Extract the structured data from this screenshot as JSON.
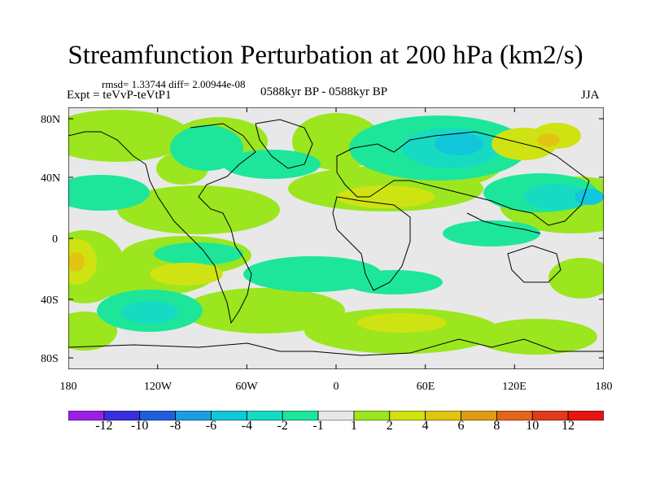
{
  "title": "Streamfunction Perturbation at 200 hPa (km2/s)",
  "stats": "rmsd= 1.33744 diff= 2.00944e-08",
  "expt": "Expt = teVvP-teVtP1",
  "period": "0588kyr BP - 0588kyr BP",
  "season": "JJA",
  "lat_labels": [
    "80N",
    "40N",
    "0",
    "40S",
    "80S"
  ],
  "lon_labels": [
    "180",
    "120W",
    "60W",
    "0",
    "60E",
    "120E",
    "180"
  ],
  "colorbar": {
    "labels": [
      "-12",
      "-10",
      "-8",
      "-6",
      "-4",
      "-2",
      "-1",
      "1",
      "2",
      "4",
      "6",
      "8",
      "10",
      "12"
    ],
    "colors": [
      "#9c1fe6",
      "#3a2fe0",
      "#1e5fdc",
      "#1a9ee0",
      "#12c6dc",
      "#16dbc2",
      "#1de69b",
      "#e8e8e8",
      "#9be61e",
      "#cfe312",
      "#e0c612",
      "#e29a12",
      "#e2661a",
      "#e23a1c",
      "#e81414"
    ]
  }
}
